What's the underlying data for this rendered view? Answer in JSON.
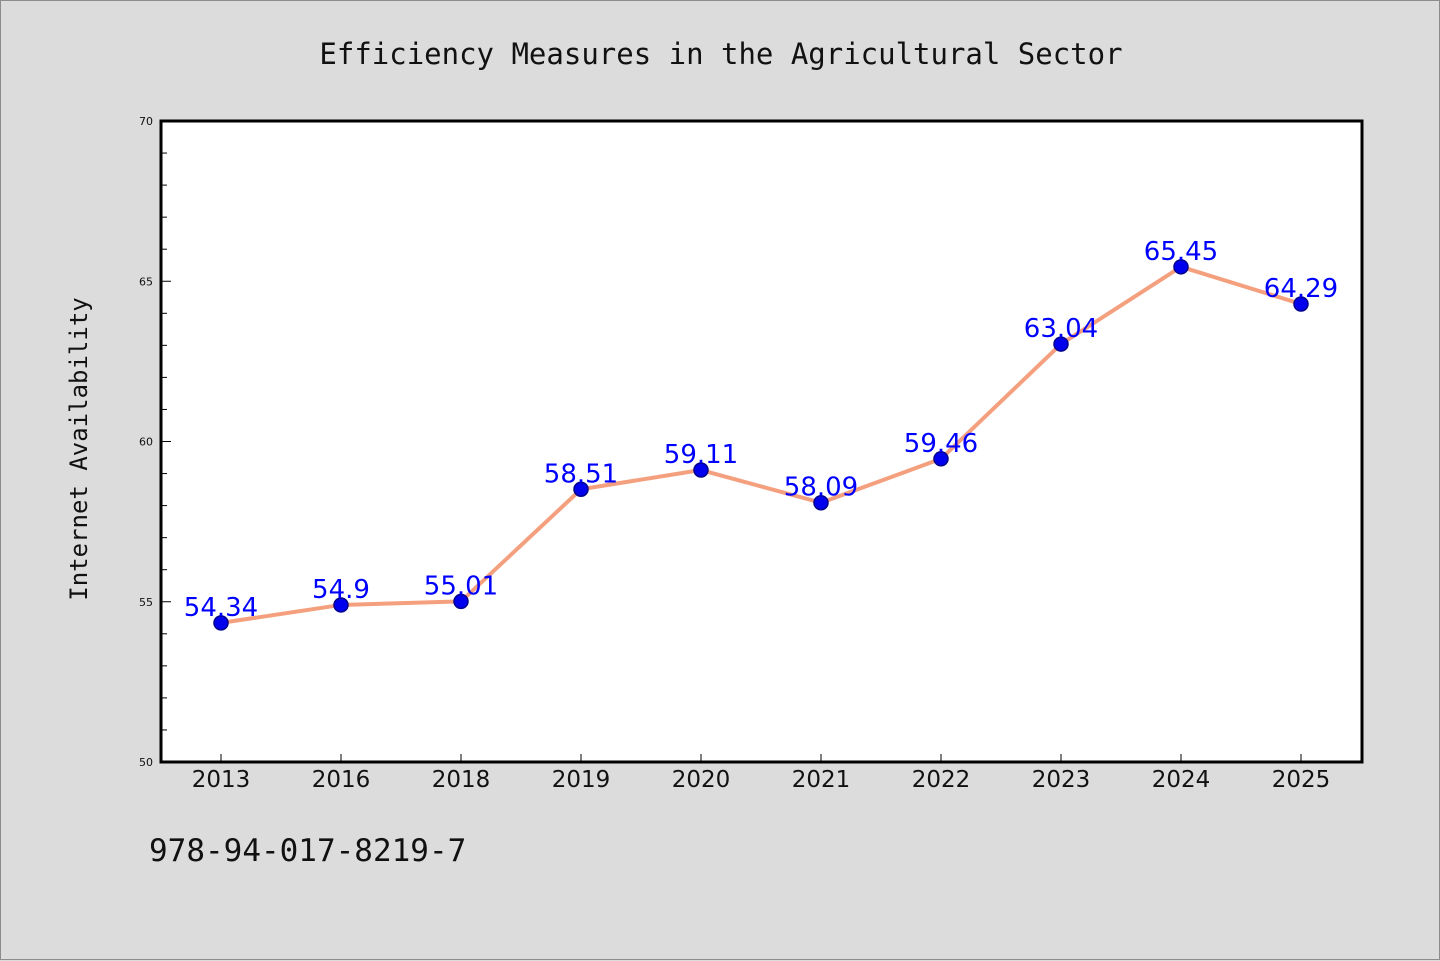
{
  "chart_data": {
    "type": "line",
    "title": "Efficiency Measures in the Agricultural Sector",
    "xlabel": "",
    "ylabel": "Internet Availability",
    "categories": [
      "2013",
      "2016",
      "2018",
      "2019",
      "2020",
      "2021",
      "2022",
      "2023",
      "2024",
      "2025"
    ],
    "values": [
      54.34,
      54.9,
      55.01,
      58.51,
      59.11,
      58.09,
      59.46,
      63.04,
      65.45,
      64.29
    ],
    "data_labels": [
      "54.34",
      "54.9",
      "55.01",
      "58.51",
      "59.11",
      "58.09",
      "59.46",
      "63.04",
      "65.45",
      "64.29"
    ],
    "ylim": [
      50,
      70
    ],
    "y_ticks": [
      50,
      55,
      60,
      65,
      70
    ],
    "grid": false,
    "legend": "none",
    "colors": {
      "line": "#f4a07e",
      "marker_fill": "#0000ee",
      "marker_edge": "#00008b",
      "data_label": "#0000ff",
      "plot_background": "#ffffff",
      "figure_background": "#dcdcdc"
    }
  },
  "footer": {
    "identifier": "978-94-017-8219-7"
  }
}
